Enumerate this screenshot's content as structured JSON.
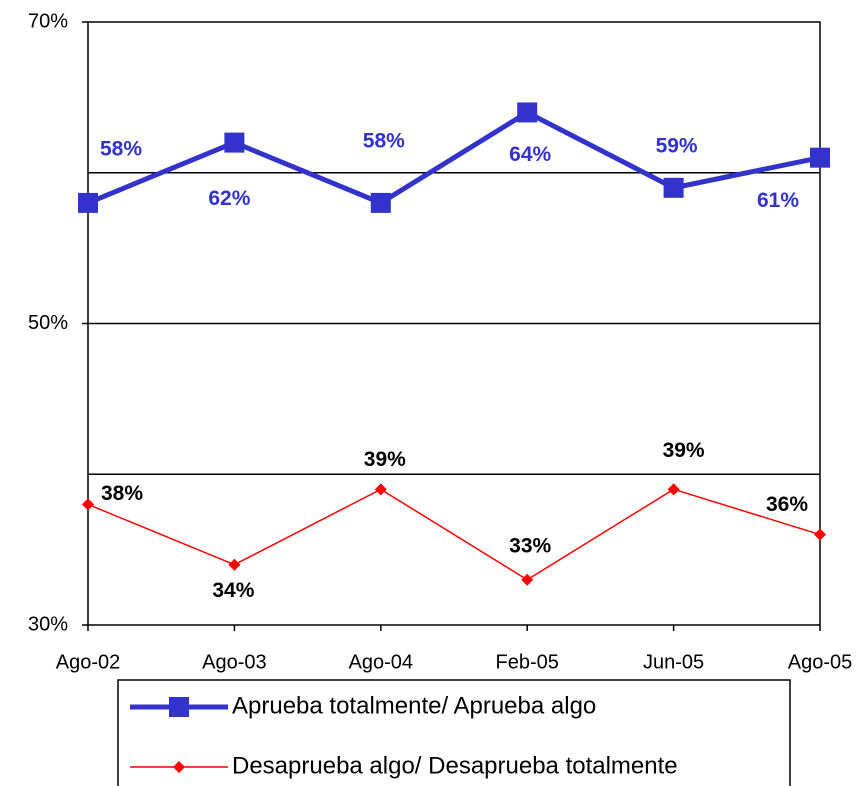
{
  "chart_data": {
    "type": "line",
    "categories": [
      "Ago-02",
      "Ago-03",
      "Ago-04",
      "Feb-05",
      "Jun-05",
      "Ago-05"
    ],
    "series": [
      {
        "name": "Aprueba totalmente/ Aprueba algo",
        "color": "#3333cc",
        "values": [
          58,
          62,
          58,
          64,
          59,
          61
        ],
        "value_labels": [
          "58%",
          "62%",
          "58%",
          "64%",
          "59%",
          "61%"
        ]
      },
      {
        "name": "Desaprueba algo/ Desaprueba totalmente",
        "color": "#ff0000",
        "values": [
          38,
          34,
          39,
          33,
          39,
          36
        ],
        "value_labels": [
          "38%",
          "34%",
          "39%",
          "33%",
          "39%",
          "36%"
        ]
      }
    ],
    "ylim": [
      30,
      70
    ],
    "yticks": [
      {
        "value": 30,
        "label": "30%"
      },
      {
        "value": 50,
        "label": "50%"
      },
      {
        "value": 70,
        "label": "70%"
      }
    ],
    "gridlines": [
      40,
      50,
      60
    ],
    "legend": "bottom"
  }
}
